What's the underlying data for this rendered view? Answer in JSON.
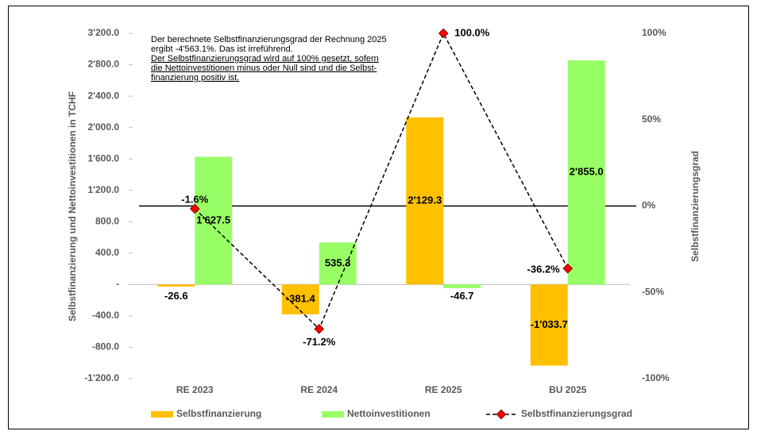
{
  "chart_data": {
    "type": "bar",
    "annotation": [
      "Der berechnete Selbstfinanzierungsgrad der Rechnung 2025",
      "ergibt -4'563.1%. Das ist irreführend."
    ],
    "note": [
      "Der Selbstfinanzierungsgrad wird auf 100% gesetzt, sofern",
      "die Nettoinvestitionen minus oder Null sind und die Selbst-",
      "finanzierung positiv ist."
    ],
    "y_label": "Selbstfinanzierung und Nettoinvestitionen in TCHF",
    "y2_label": "Selbstfinanzierungsgrad",
    "categories": [
      "RE 2023",
      "RE 2024",
      "RE 2025",
      "BU 2025"
    ],
    "ylim": [
      -1200,
      3200
    ],
    "yticks": [
      {
        "value": -1200,
        "label": "-1'200.0"
      },
      {
        "value": -800,
        "label": "-800.0"
      },
      {
        "value": -400,
        "label": "-400.0"
      },
      {
        "value": 0,
        "label": "-"
      },
      {
        "value": 400,
        "label": "400.0"
      },
      {
        "value": 800,
        "label": "800.0"
      },
      {
        "value": 1200,
        "label": "1'200.0"
      },
      {
        "value": 1600,
        "label": "1'600.0"
      },
      {
        "value": 2000,
        "label": "2'000.0"
      },
      {
        "value": 2400,
        "label": "2'400.0"
      },
      {
        "value": 2800,
        "label": "2'800.0"
      },
      {
        "value": 3200,
        "label": "3'200.0"
      }
    ],
    "y2lim": [
      -100,
      100
    ],
    "y2ticks": [
      {
        "value": -100,
        "label": "-100%"
      },
      {
        "value": -50,
        "label": "-50%"
      },
      {
        "value": 0,
        "label": "0%"
      },
      {
        "value": 50,
        "label": "50%"
      },
      {
        "value": 100,
        "label": "100%"
      }
    ],
    "series": [
      {
        "name": "Selbstfinanzierung",
        "color": "#ffc000",
        "values": [
          -26.6,
          -381.4,
          2129.3,
          -1033.7
        ],
        "value_labels": [
          "-26.6",
          "-381.4",
          "2'129.3",
          "-1'033.7"
        ]
      },
      {
        "name": "Nettoinvestitionen",
        "color": "#99ff66",
        "values": [
          1627.5,
          535.3,
          -46.7,
          2855.0
        ],
        "value_labels": [
          "1'627.5",
          "535.3",
          "-46.7",
          "2'855.0"
        ]
      },
      {
        "name": "Selbstfinanzierungsgrad",
        "type": "line",
        "axis": "y2",
        "color": "#ff0000",
        "values": [
          -1.6,
          -71.2,
          100.0,
          -36.2
        ],
        "value_labels": [
          "-1.6%",
          "-71.2%",
          "100.0%",
          "-36.2%"
        ]
      }
    ]
  }
}
